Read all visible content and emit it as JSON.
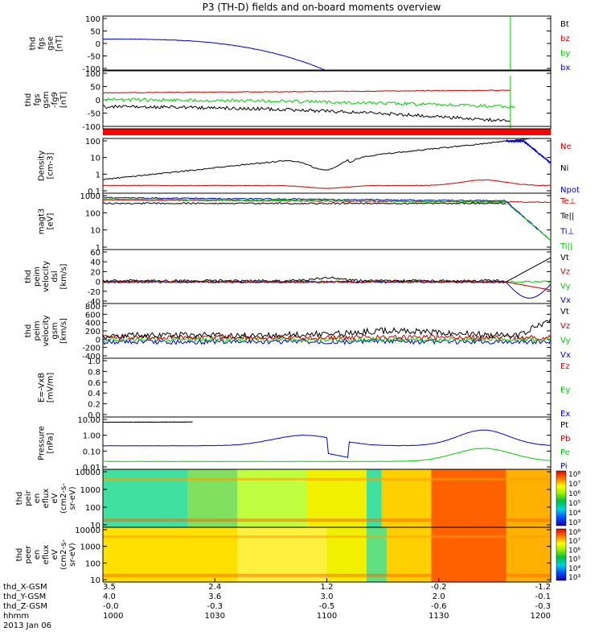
{
  "chart_data": {
    "type": "line",
    "title": "P3 (TH-D) fields and on-board moments overview",
    "panels": [
      {
        "id": "fgs_gse",
        "ylabel": [
          "thd",
          "fgs",
          "gse",
          "[nT]"
        ],
        "yticks": [
          "100",
          "50",
          "0",
          "-50",
          "-100"
        ],
        "ylim": [
          -100,
          100
        ],
        "legend": [
          {
            "label": "Bt",
            "color": "#000000"
          },
          {
            "label": "bz",
            "color": "#cc0000"
          },
          {
            "label": "by",
            "color": "#00cc00"
          },
          {
            "label": "bx",
            "color": "#0000cc"
          }
        ]
      },
      {
        "id": "fgs_gsm",
        "ylabel": [
          "thd",
          "fgs",
          "gsm",
          "-fg9",
          "[nT]"
        ],
        "yticks": [
          "100",
          "50",
          "0",
          "-50",
          "-100"
        ],
        "ylim": [
          -130,
          120
        ],
        "legend": []
      },
      {
        "id": "density",
        "ylabel": [
          "Density",
          "[cm-3]"
        ],
        "yticks": [
          "100",
          "10",
          "1",
          "0.1"
        ],
        "log": true,
        "ylim": [
          0.1,
          200
        ],
        "legend": [
          {
            "label": "Ne",
            "color": "#cc0000"
          },
          {
            "label": "Ni",
            "color": "#000000"
          },
          {
            "label": "Npot",
            "color": "#0000cc"
          }
        ]
      },
      {
        "id": "temperature",
        "ylabel": [
          "magt3",
          "[eV]"
        ],
        "yticks": [
          "1000",
          "100",
          "10",
          "1"
        ],
        "log": true,
        "ylim": [
          1,
          1200
        ],
        "legend": [
          {
            "label": "Te⊥",
            "color": "#cc0000"
          },
          {
            "label": "Te||",
            "color": "#000000"
          },
          {
            "label": "Ti⊥",
            "color": "#0000cc"
          },
          {
            "label": "Ti||",
            "color": "#00cc00"
          }
        ]
      },
      {
        "id": "velocity_dsl",
        "ylabel": [
          "thd",
          "peim",
          "velocity",
          "dsl",
          "[km/s]"
        ],
        "yticks": [
          "60",
          "40",
          "20",
          "0",
          "-20",
          "-40"
        ],
        "ylim": [
          -40,
          60
        ],
        "legend": [
          {
            "label": "Vt",
            "color": "#000000"
          },
          {
            "label": "Vz",
            "color": "#cc0000"
          },
          {
            "label": "Vy",
            "color": "#00cc00"
          },
          {
            "label": "Vx",
            "color": "#0000cc"
          }
        ]
      },
      {
        "id": "velocity_gsm",
        "ylabel": [
          "thd",
          "peim",
          "velocity",
          "gsm",
          "[km/s]"
        ],
        "yticks": [
          "800",
          "600",
          "400",
          "200",
          "0",
          "-200",
          "-400"
        ],
        "ylim": [
          -400,
          800
        ],
        "legend": [
          {
            "label": "Vt",
            "color": "#000000"
          },
          {
            "label": "Vz",
            "color": "#cc0000"
          },
          {
            "label": "Vy",
            "color": "#00cc00"
          },
          {
            "label": "Vx",
            "color": "#0000cc"
          }
        ]
      },
      {
        "id": "efield",
        "ylabel": [
          "E=-VxB",
          "[mV/m]"
        ],
        "yticks": [
          "1.0",
          "0.8",
          "0.6",
          "0.4",
          "0.2",
          "0.0"
        ],
        "ylim": [
          0,
          1
        ],
        "legend": [
          {
            "label": "Ez",
            "color": "#cc0000"
          },
          {
            "label": "Ey",
            "color": "#00cc00"
          },
          {
            "label": "Ex",
            "color": "#0000cc"
          }
        ]
      },
      {
        "id": "pressure",
        "ylabel": [
          "Pressure",
          "[nPa]"
        ],
        "yticks": [
          "10.00",
          "1.00",
          "0.10",
          "0.01"
        ],
        "log": true,
        "ylim": [
          0.007,
          20
        ],
        "legend": [
          {
            "label": "Pt",
            "color": "#000000"
          },
          {
            "label": "Pb",
            "color": "#cc0000"
          },
          {
            "label": "Pe",
            "color": "#00cc00"
          },
          {
            "label": "Pi",
            "color": "#0000cc"
          }
        ]
      },
      {
        "id": "ion_spectrogram",
        "ylabel": [
          "thd",
          "peir",
          "en",
          "eflux",
          "eV",
          "(cm2-s-",
          "sr-eV)"
        ],
        "yticks": [
          "10000",
          "1000",
          "100",
          "10"
        ],
        "colorbar": [
          "10⁸",
          "10⁷",
          "10⁶",
          "10⁵",
          "10⁴",
          "10³"
        ]
      },
      {
        "id": "electron_spectrogram",
        "ylabel": [
          "thd",
          "peer",
          "en",
          "eflux",
          "eV",
          "(cm2-s-",
          "sr-eV)"
        ],
        "yticks": [
          "10000",
          "1000",
          "100",
          "10"
        ],
        "colorbar": [
          "10⁸",
          "10⁷",
          "10⁶",
          "10⁵",
          "10⁴",
          "10³"
        ]
      }
    ],
    "x_axis": {
      "row_labels": [
        "thd_X-GSM",
        "thd_Y-GSM",
        "thd_Z-GSM",
        "hhmm",
        "2013 Jan 06"
      ],
      "ticks": [
        {
          "x": "3.5",
          "y": "4.0",
          "z": "-0.0",
          "t": "1000"
        },
        {
          "x": "2.4",
          "y": "3.6",
          "z": "-0.3",
          "t": "1030"
        },
        {
          "x": "1.2",
          "y": "3.0",
          "z": "-0.5",
          "t": "1100"
        },
        {
          "x": "-0.2",
          "y": "2.0",
          "z": "-0.6",
          "t": "1130"
        },
        {
          "x": "-1.2",
          "y": "-0.1",
          "z": "-0.3",
          "t": "1200"
        }
      ]
    }
  }
}
